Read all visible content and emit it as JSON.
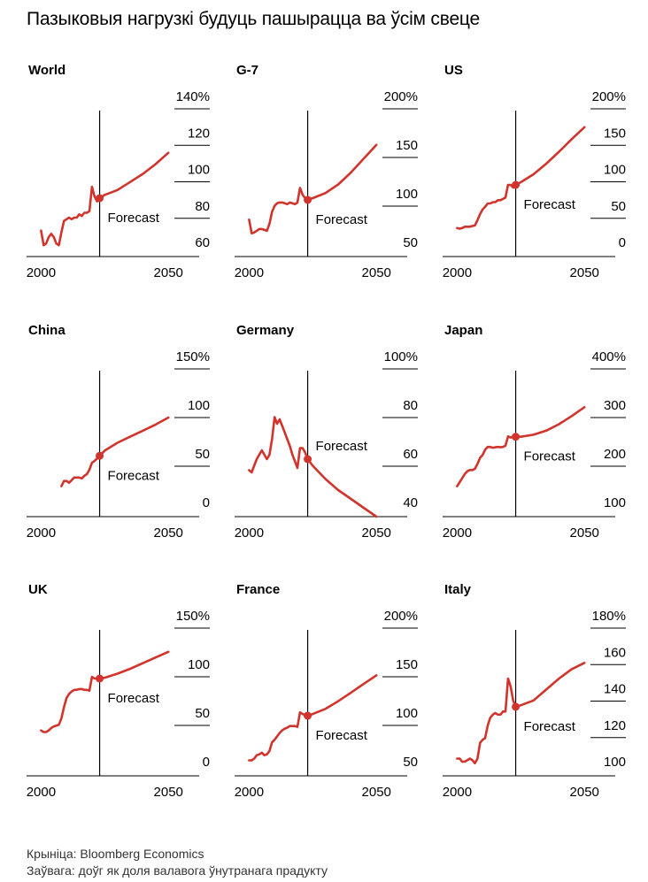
{
  "title": "Пазыковыя нагрузкі будуць пашырацца ва ўсім свеце",
  "source": "Крыніца: Bloomberg Economics",
  "note": "Заўвага: доўг як доля валавога ўнутранага прадукту",
  "colors": {
    "line": "#d0342c",
    "axis": "#000000"
  },
  "forecast_label": "Forecast",
  "chart_data": [
    {
      "type": "line",
      "title": "World",
      "xlim": [
        1995,
        2060
      ],
      "ylim": [
        55,
        145
      ],
      "x_ticks": [
        "2000",
        "2050"
      ],
      "y_ticks": [
        "140%",
        "120",
        "100",
        "80",
        "60"
      ],
      "forecast_year": 2023,
      "series": [
        {
          "x": [
            2000,
            2001,
            2002,
            2003,
            2004,
            2005,
            2006,
            2007,
            2008,
            2009,
            2010,
            2011,
            2012,
            2013,
            2014,
            2015,
            2016,
            2017,
            2018,
            2019,
            2020,
            2021,
            2022,
            2023,
            2025,
            2030,
            2035,
            2040,
            2045,
            2050
          ],
          "y": [
            71,
            62,
            63,
            67,
            69,
            67,
            63,
            62,
            70,
            77,
            78,
            79,
            78,
            79,
            79,
            81,
            80,
            82,
            82,
            83,
            98,
            92,
            89,
            91,
            93,
            96,
            101,
            106,
            112,
            119
          ]
        }
      ]
    },
    {
      "type": "line",
      "title": "G-7",
      "xlim": [
        1995,
        2060
      ],
      "ylim": [
        40,
        210
      ],
      "x_ticks": [
        "2000",
        "2050"
      ],
      "y_ticks": [
        "200%",
        "150",
        "100",
        "50"
      ],
      "forecast_year": 2023,
      "series": [
        {
          "x": [
            2000,
            2001,
            2002,
            2003,
            2004,
            2005,
            2006,
            2007,
            2008,
            2009,
            2010,
            2011,
            2012,
            2013,
            2014,
            2015,
            2016,
            2017,
            2018,
            2019,
            2020,
            2021,
            2022,
            2023,
            2025,
            2030,
            2035,
            2040,
            2045,
            2050
          ],
          "y": [
            83,
            67,
            68,
            70,
            72,
            72,
            71,
            70,
            78,
            92,
            99,
            102,
            103,
            103,
            102,
            101,
            103,
            102,
            101,
            103,
            120,
            112,
            108,
            106,
            108,
            114,
            124,
            138,
            154,
            170
          ]
        }
      ]
    },
    {
      "type": "line",
      "title": "US",
      "xlim": [
        1995,
        2060
      ],
      "ylim": [
        -10,
        210
      ],
      "x_ticks": [
        "2000",
        "2050"
      ],
      "y_ticks": [
        "200%",
        "150",
        "100",
        "50",
        "0"
      ],
      "forecast_year": 2023,
      "series": [
        {
          "x": [
            2000,
            2001,
            2002,
            2003,
            2004,
            2005,
            2006,
            2007,
            2008,
            2009,
            2010,
            2011,
            2012,
            2013,
            2014,
            2015,
            2016,
            2017,
            2018,
            2019,
            2020,
            2021,
            2022,
            2023,
            2025,
            2030,
            2035,
            2040,
            2045,
            2050
          ],
          "y": [
            33,
            32,
            33,
            35,
            35,
            35,
            36,
            37,
            45,
            54,
            61,
            65,
            70,
            70,
            72,
            72,
            75,
            75,
            77,
            79,
            98,
            98,
            94,
            98,
            102,
            114,
            130,
            148,
            167,
            185
          ]
        }
      ]
    },
    {
      "type": "line",
      "title": "China",
      "xlim": [
        1995,
        2060
      ],
      "ylim": [
        -8,
        160
      ],
      "x_ticks": [
        "2000",
        "2050"
      ],
      "y_ticks": [
        "150%",
        "100",
        "50",
        "0"
      ],
      "forecast_year": 2023,
      "series": [
        {
          "x": [
            2008,
            2009,
            2010,
            2011,
            2012,
            2013,
            2014,
            2015,
            2016,
            2017,
            2018,
            2019,
            2020,
            2021,
            2022,
            2023,
            2025,
            2030,
            2035,
            2040,
            2045,
            2050
          ],
          "y": [
            27,
            33,
            33,
            31,
            34,
            37,
            37,
            37,
            36,
            39,
            41,
            46,
            54,
            56,
            59,
            62,
            68,
            77,
            84,
            91,
            98,
            106
          ]
        }
      ]
    },
    {
      "type": "line",
      "title": "Germany",
      "xlim": [
        1995,
        2060
      ],
      "ylim": [
        37,
        103
      ],
      "x_ticks": [
        "2000",
        "2050"
      ],
      "y_ticks": [
        "100%",
        "80",
        "60",
        "40"
      ],
      "forecast_year": 2023,
      "series": [
        {
          "x": [
            2000,
            2001,
            2002,
            2003,
            2004,
            2005,
            2006,
            2007,
            2008,
            2009,
            2010,
            2011,
            2012,
            2013,
            2014,
            2015,
            2016,
            2017,
            2018,
            2019,
            2020,
            2021,
            2022,
            2023,
            2025,
            2030,
            2035,
            2040,
            2045,
            2050
          ],
          "y": [
            58,
            57,
            60,
            63,
            65,
            67,
            65,
            63,
            65,
            72,
            82,
            79,
            81,
            78,
            75,
            72,
            69,
            65,
            62,
            59,
            68,
            68,
            66,
            63,
            60,
            54,
            49,
            45,
            41,
            37
          ]
        }
      ]
    },
    {
      "type": "line",
      "title": "Japan",
      "xlim": [
        1995,
        2060
      ],
      "ylim": [
        60,
        420
      ],
      "x_ticks": [
        "2000",
        "2050"
      ],
      "y_ticks": [
        "400%",
        "300",
        "200",
        "100"
      ],
      "forecast_year": 2023,
      "series": [
        {
          "x": [
            2000,
            2001,
            2002,
            2003,
            2004,
            2005,
            2006,
            2007,
            2008,
            2009,
            2010,
            2011,
            2012,
            2013,
            2014,
            2015,
            2016,
            2017,
            2018,
            2019,
            2020,
            2021,
            2022,
            2023,
            2025,
            2030,
            2035,
            2040,
            2045,
            2050
          ],
          "y": [
            135,
            145,
            155,
            165,
            172,
            175,
            175,
            178,
            190,
            205,
            212,
            225,
            232,
            232,
            230,
            231,
            232,
            231,
            232,
            235,
            258,
            255,
            257,
            257,
            257,
            262,
            272,
            288,
            308,
            330
          ]
        }
      ]
    },
    {
      "type": "line",
      "title": "UK",
      "xlim": [
        1995,
        2060
      ],
      "ylim": [
        -20,
        160
      ],
      "x_ticks": [
        "2000",
        "2050"
      ],
      "y_ticks": [
        "150%",
        "100",
        "50",
        "0"
      ],
      "forecast_year": 2023,
      "series": [
        {
          "x": [
            2000,
            2001,
            2002,
            2003,
            2004,
            2005,
            2006,
            2007,
            2008,
            2009,
            2010,
            2011,
            2012,
            2013,
            2014,
            2015,
            2016,
            2017,
            2018,
            2019,
            2020,
            2021,
            2022,
            2023,
            2025,
            2030,
            2035,
            2040,
            2045,
            2050
          ],
          "y": [
            36,
            34,
            34,
            36,
            39,
            41,
            42,
            43,
            51,
            65,
            76,
            81,
            84,
            86,
            86,
            87,
            87,
            86,
            86,
            85,
            102,
            100,
            100,
            100,
            101,
            106,
            112,
            119,
            126,
            133
          ]
        }
      ]
    },
    {
      "type": "line",
      "title": "France",
      "xlim": [
        1995,
        2060
      ],
      "ylim": [
        40,
        210
      ],
      "x_ticks": [
        "2000",
        "2050"
      ],
      "y_ticks": [
        "200%",
        "150",
        "100",
        "50"
      ],
      "forecast_year": 2023,
      "series": [
        {
          "x": [
            2000,
            2001,
            2002,
            2003,
            2004,
            2005,
            2006,
            2007,
            2008,
            2009,
            2010,
            2011,
            2012,
            2013,
            2014,
            2015,
            2016,
            2017,
            2018,
            2019,
            2020,
            2021,
            2022,
            2023,
            2025,
            2030,
            2035,
            2040,
            2045,
            2050
          ],
          "y": [
            58,
            58,
            60,
            64,
            65,
            67,
            64,
            65,
            69,
            79,
            82,
            86,
            90,
            93,
            95,
            96,
            98,
            98,
            98,
            97,
            114,
            112,
            111,
            110,
            112,
            118,
            127,
            137,
            147,
            157
          ]
        }
      ]
    },
    {
      "type": "line",
      "title": "Italy",
      "xlim": [
        1995,
        2060
      ],
      "ylim": [
        92,
        185
      ],
      "x_ticks": [
        "2000",
        "2050"
      ],
      "y_ticks": [
        "180%",
        "160",
        "140",
        "120",
        "100"
      ],
      "forecast_year": 2023,
      "series": [
        {
          "x": [
            2000,
            2001,
            2002,
            2003,
            2004,
            2005,
            2006,
            2007,
            2008,
            2009,
            2010,
            2011,
            2012,
            2013,
            2014,
            2015,
            2016,
            2017,
            2018,
            2019,
            2020,
            2021,
            2022,
            2023,
            2025,
            2030,
            2035,
            2040,
            2045,
            2050
          ],
          "y": [
            103,
            103,
            101,
            101,
            102,
            103,
            102,
            100,
            103,
            113,
            115,
            116,
            124,
            129,
            131,
            132,
            131,
            131,
            133,
            133,
            154,
            149,
            140,
            136,
            137,
            140,
            147,
            154,
            160,
            164
          ]
        }
      ]
    }
  ]
}
